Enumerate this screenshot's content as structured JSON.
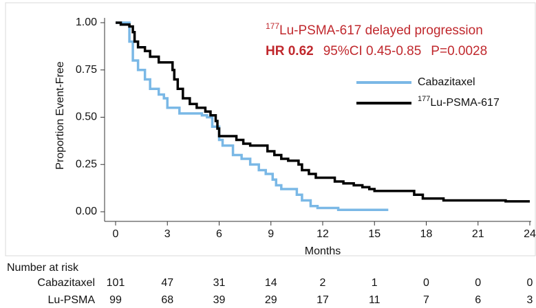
{
  "chart_data": {
    "type": "step",
    "annotation": {
      "sup": "177",
      "text": "Lu-PSMA-617 delayed progression",
      "hr": "HR 0.62",
      "ci": "95%CI 0.45-0.85",
      "p": "P=0.0028"
    },
    "xlabel": "Months",
    "ylabel": "Proportion Event-Free",
    "xlim": [
      0,
      24
    ],
    "ylim": [
      0,
      1
    ],
    "xticks": [
      0,
      3,
      6,
      9,
      12,
      15,
      18,
      21,
      24
    ],
    "yticks": [
      {
        "value": 0,
        "label": "0.00"
      },
      0.25,
      {
        "value": 0.5,
        "label": "0.50"
      },
      0.75,
      {
        "value": 1,
        "label": "1.00"
      }
    ],
    "series": [
      {
        "name": "Cabazitaxel",
        "color": "#7ab8e6",
        "x": [
          0,
          0.8,
          1.0,
          1.3,
          1.7,
          2.0,
          2.5,
          2.8,
          3.0,
          3.7,
          5.0,
          5.3,
          5.6,
          6.0,
          6.2,
          6.8,
          7.3,
          7.8,
          8.3,
          8.7,
          9.1,
          9.3,
          9.6,
          10.5,
          10.8,
          11.3,
          11.7,
          12.9,
          15.8
        ],
        "values": [
          1,
          0.9,
          0.8,
          0.75,
          0.7,
          0.65,
          0.62,
          0.6,
          0.55,
          0.52,
          0.51,
          0.5,
          0.45,
          0.38,
          0.35,
          0.3,
          0.28,
          0.25,
          0.22,
          0.2,
          0.17,
          0.14,
          0.12,
          0.09,
          0.06,
          0.03,
          0.02,
          0.01,
          0.01
        ]
      },
      {
        "name": "Lu-PSMA-617",
        "name_sup": "177",
        "color": "#000000",
        "x": [
          0,
          0.3,
          0.8,
          1.0,
          1.1,
          1.3,
          1.7,
          2.0,
          2.5,
          3.3,
          3.4,
          3.6,
          3.9,
          4.3,
          4.7,
          5.2,
          5.5,
          5.8,
          5.9,
          6.0,
          7.0,
          7.4,
          7.8,
          8.8,
          9.2,
          9.6,
          10.0,
          10.6,
          10.8,
          11.2,
          11.6,
          12.7,
          13.2,
          13.8,
          14.3,
          14.7,
          15.0,
          17.3,
          17.8,
          19.0,
          22.6,
          24
        ],
        "values": [
          1,
          0.99,
          0.98,
          0.95,
          0.9,
          0.87,
          0.85,
          0.82,
          0.79,
          0.75,
          0.7,
          0.65,
          0.6,
          0.57,
          0.55,
          0.53,
          0.51,
          0.48,
          0.44,
          0.4,
          0.38,
          0.36,
          0.35,
          0.32,
          0.3,
          0.28,
          0.27,
          0.25,
          0.22,
          0.2,
          0.18,
          0.16,
          0.15,
          0.14,
          0.13,
          0.12,
          0.11,
          0.09,
          0.07,
          0.06,
          0.055,
          0.055
        ]
      }
    ],
    "risk_table": {
      "title": "Number at risk",
      "rows": [
        {
          "label": "Cabazitaxel",
          "values": [
            101,
            47,
            31,
            14,
            2,
            1,
            0,
            0,
            0
          ]
        },
        {
          "label": "Lu-PSMA",
          "values": [
            99,
            68,
            39,
            29,
            17,
            11,
            7,
            6,
            3
          ]
        }
      ]
    }
  }
}
